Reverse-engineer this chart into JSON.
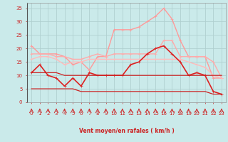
{
  "xlabel": "Vent moyen/en rafales ( km/h )",
  "xlim": [
    -0.5,
    23.5
  ],
  "ylim": [
    0,
    37
  ],
  "yticks": [
    0,
    5,
    10,
    15,
    20,
    25,
    30,
    35
  ],
  "xticks": [
    0,
    1,
    2,
    3,
    4,
    5,
    6,
    7,
    8,
    9,
    10,
    11,
    12,
    13,
    14,
    15,
    16,
    17,
    18,
    19,
    20,
    21,
    22,
    23
  ],
  "bg_color": "#caeaea",
  "grid_color": "#b0d0d0",
  "series": [
    {
      "name": "rafales_peak",
      "color": "#ff9999",
      "linewidth": 1.0,
      "markersize": 2.5,
      "marker": "+",
      "values": [
        21,
        18,
        18,
        18,
        17,
        14,
        15,
        12,
        17,
        17,
        27,
        27,
        27,
        28,
        30,
        32,
        35,
        31,
        23,
        17,
        17,
        17,
        9,
        9
      ]
    },
    {
      "name": "rafales_mid1",
      "color": "#ffaaaa",
      "linewidth": 1.0,
      "markersize": 2.5,
      "marker": "+",
      "values": [
        18,
        18,
        18,
        17,
        17,
        16,
        16,
        17,
        18,
        17,
        18,
        18,
        18,
        18,
        18,
        18,
        23,
        23,
        17,
        17,
        17,
        17,
        15,
        9
      ]
    },
    {
      "name": "rafales_mid2",
      "color": "#ffbbbb",
      "linewidth": 1.0,
      "markersize": 2.5,
      "marker": "+",
      "values": [
        16,
        17,
        17,
        16,
        14,
        15,
        15,
        16,
        16,
        16,
        16,
        16,
        16,
        16,
        16,
        16,
        16,
        16,
        16,
        15,
        14,
        13,
        10,
        9
      ]
    },
    {
      "name": "mean_active",
      "color": "#dd2222",
      "linewidth": 1.2,
      "markersize": 2.5,
      "marker": "+",
      "values": [
        11,
        14,
        10,
        9,
        6,
        9,
        6,
        11,
        10,
        10,
        10,
        10,
        14,
        15,
        18,
        20,
        21,
        18,
        15,
        10,
        11,
        10,
        4,
        3
      ]
    },
    {
      "name": "mean_flat1",
      "color": "#cc2222",
      "linewidth": 0.9,
      "markersize": 0,
      "marker": "None",
      "values": [
        11,
        11,
        11,
        11,
        10,
        10,
        10,
        10,
        10,
        10,
        10,
        10,
        10,
        10,
        10,
        10,
        10,
        10,
        10,
        10,
        10,
        10,
        10,
        10
      ]
    },
    {
      "name": "mean_flat2",
      "color": "#cc2222",
      "linewidth": 0.9,
      "markersize": 0,
      "marker": "None",
      "values": [
        5,
        5,
        5,
        5,
        5,
        5,
        4,
        4,
        4,
        4,
        4,
        4,
        4,
        4,
        4,
        4,
        4,
        4,
        4,
        4,
        4,
        4,
        3,
        3
      ]
    }
  ],
  "wind_arrow_color": "#cc2222",
  "wind_arrows_x": [
    0,
    1,
    2,
    3,
    4,
    5,
    6,
    7,
    8,
    9,
    10,
    11,
    12,
    13,
    14,
    15,
    16,
    17,
    18,
    19,
    20,
    21,
    22,
    23
  ]
}
